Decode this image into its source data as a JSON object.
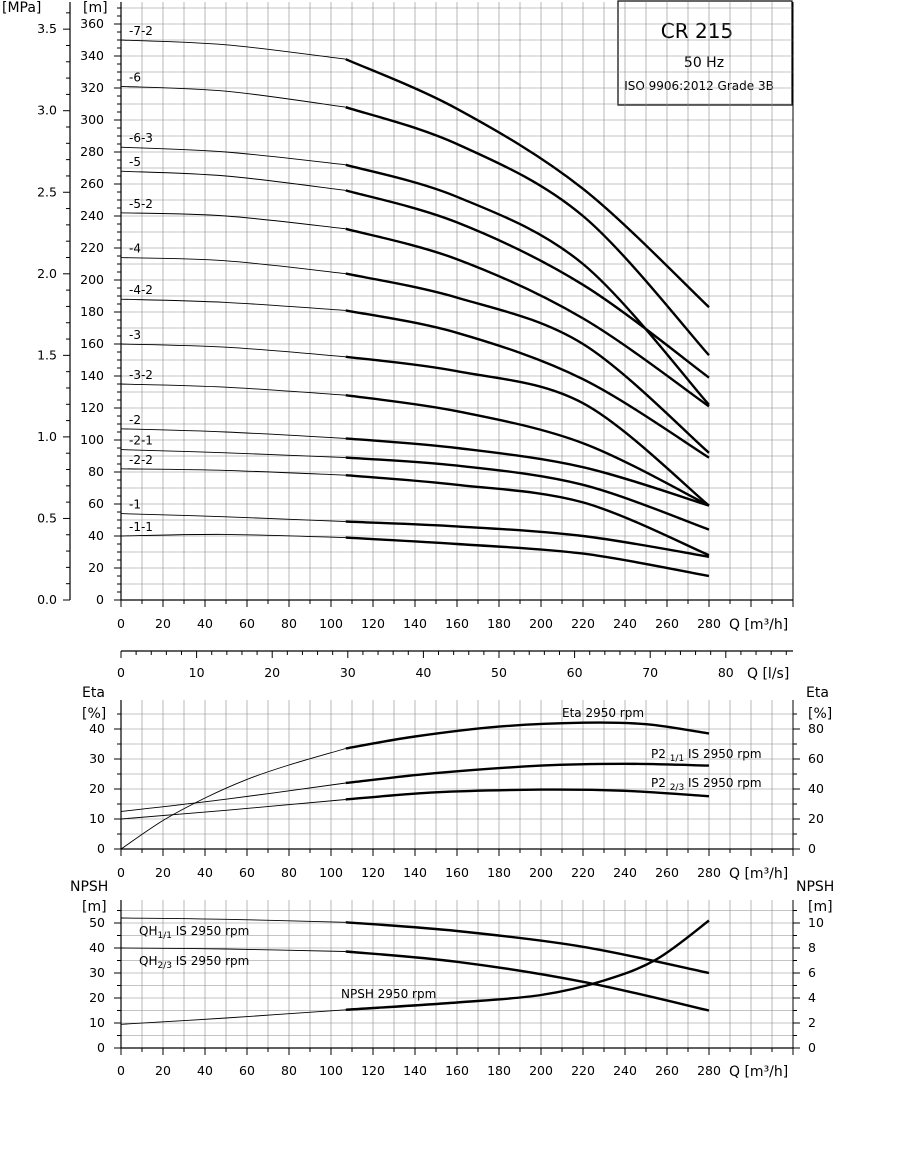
{
  "title": {
    "model": "CR 215",
    "frequency": "50 Hz",
    "standard": "ISO 9906:2012 Grade 3B"
  },
  "chart_data": [
    {
      "type": "line",
      "name": "head",
      "xlabel": "Q [m³/h]",
      "x_ticks": [
        0,
        20,
        40,
        60,
        80,
        100,
        120,
        140,
        160,
        180,
        200,
        220,
        240,
        260,
        280
      ],
      "xlim": [
        0,
        320
      ],
      "ylabel_left": "[m]",
      "y_ticks": [
        0,
        20,
        40,
        60,
        80,
        100,
        120,
        140,
        160,
        180,
        200,
        220,
        240,
        260,
        280,
        300,
        320,
        340,
        360
      ],
      "ylim": [
        0,
        370
      ],
      "ylabel_pressure": "[MPa]",
      "pressure_ticks": [
        "0.0",
        "0.5",
        "1.0",
        "1.5",
        "2.0",
        "2.5",
        "3.0",
        "3.5"
      ],
      "secondary_axis": {
        "label": "Q [l/s]",
        "ticks": [
          0,
          10,
          20,
          30,
          40,
          50,
          60,
          70,
          80
        ]
      },
      "grid": true,
      "duty_start_q": 107,
      "series": [
        {
          "name": "-7-2",
          "x": [
            0,
            50,
            107,
            160,
            220,
            280
          ],
          "y": [
            350,
            347,
            338,
            307,
            257,
            183
          ]
        },
        {
          "name": "-6",
          "x": [
            0,
            50,
            107,
            160,
            220,
            280
          ],
          "y": [
            321,
            318,
            308,
            285,
            240,
            153
          ]
        },
        {
          "name": "-6-3",
          "x": [
            0,
            50,
            107,
            160,
            220,
            280
          ],
          "y": [
            283,
            280,
            272,
            252,
            210,
            122
          ]
        },
        {
          "name": "-5",
          "x": [
            0,
            50,
            107,
            160,
            220,
            280
          ],
          "y": [
            268,
            265,
            256,
            236,
            197,
            139
          ]
        },
        {
          "name": "-5-2",
          "x": [
            0,
            50,
            107,
            160,
            220,
            280
          ],
          "y": [
            242,
            240,
            232,
            213,
            176,
            121
          ]
        },
        {
          "name": "-4",
          "x": [
            0,
            50,
            107,
            160,
            220,
            280
          ],
          "y": [
            214,
            212,
            204,
            189,
            160,
            92
          ]
        },
        {
          "name": "-4-2",
          "x": [
            0,
            50,
            107,
            160,
            220,
            280
          ],
          "y": [
            188,
            186,
            181,
            167,
            138,
            89
          ]
        },
        {
          "name": "-3",
          "x": [
            0,
            50,
            107,
            160,
            220,
            280
          ],
          "y": [
            160,
            158,
            152,
            143,
            123,
            59
          ]
        },
        {
          "name": "-3-2",
          "x": [
            0,
            50,
            107,
            160,
            220,
            280
          ],
          "y": [
            135,
            133,
            128,
            118,
            98,
            59
          ]
        },
        {
          "name": "-2",
          "x": [
            0,
            50,
            107,
            160,
            220,
            280
          ],
          "y": [
            107,
            105,
            101,
            95,
            83,
            59
          ]
        },
        {
          "name": "-2-1",
          "x": [
            0,
            50,
            107,
            160,
            220,
            280
          ],
          "y": [
            94,
            92,
            89,
            84,
            72,
            44
          ]
        },
        {
          "name": "-2-2",
          "x": [
            0,
            50,
            107,
            160,
            220,
            280
          ],
          "y": [
            82,
            81,
            78,
            72,
            61,
            28
          ]
        },
        {
          "name": "-1",
          "x": [
            0,
            50,
            107,
            160,
            220,
            280
          ],
          "y": [
            54,
            52,
            49,
            46,
            40,
            27
          ]
        },
        {
          "name": "-1-1",
          "x": [
            0,
            50,
            107,
            160,
            220,
            280
          ],
          "y": [
            40,
            41,
            39,
            35,
            29,
            15
          ]
        }
      ]
    },
    {
      "type": "line",
      "name": "efficiency_power",
      "xlabel": "Q [m³/h]",
      "x_ticks": [
        0,
        20,
        40,
        60,
        80,
        100,
        120,
        140,
        160,
        180,
        200,
        220,
        240,
        260,
        280
      ],
      "xlim": [
        0,
        320
      ],
      "ylabel_left": "Eta",
      "unit_left": "[%]",
      "y_ticks": [
        0,
        10,
        20,
        30,
        40
      ],
      "ylim": [
        0,
        47
      ],
      "ylabel_right": "Eta",
      "unit_right": "[%]",
      "y2_ticks": [
        0,
        20,
        40,
        60,
        80
      ],
      "grid": true,
      "series": [
        {
          "name": "Eta 2950 rpm",
          "x": [
            0,
            20,
            40,
            60,
            80,
            107,
            140,
            180,
            220,
            250,
            280
          ],
          "y": [
            0,
            9.5,
            17,
            23.2,
            28,
            33.5,
            37.5,
            40.8,
            42.1,
            41.6,
            38.5
          ]
        },
        {
          "name": "P2 1/1 IS 2950 rpm",
          "x": [
            0,
            50,
            107,
            150,
            200,
            240,
            280
          ],
          "y": [
            12.5,
            16.6,
            22,
            25.3,
            27.8,
            28.4,
            27.8
          ]
        },
        {
          "name": "P2 2/3 IS 2950 rpm",
          "x": [
            0,
            50,
            107,
            150,
            200,
            240,
            280
          ],
          "y": [
            10,
            12.9,
            16.5,
            18.9,
            19.8,
            19.4,
            17.6
          ]
        }
      ]
    },
    {
      "type": "line",
      "name": "npsh",
      "xlabel": "Q [m³/h]",
      "x_ticks": [
        0,
        20,
        40,
        60,
        80,
        100,
        120,
        140,
        160,
        180,
        200,
        220,
        240,
        260,
        280
      ],
      "xlim": [
        0,
        320
      ],
      "ylabel_left": "NPSH",
      "unit_left": "[m]",
      "y_ticks": [
        0,
        10,
        20,
        30,
        40,
        50
      ],
      "ylim": [
        0,
        55
      ],
      "ylabel_right": "NPSH",
      "unit_right": "[m]",
      "y2_ticks": [
        0,
        2,
        4,
        6,
        8,
        10
      ],
      "grid": true,
      "series": [
        {
          "name": "QH 1/1 IS 2950 rpm",
          "x": [
            0,
            50,
            107,
            160,
            220,
            280
          ],
          "y": [
            52,
            51.5,
            50.3,
            46.8,
            40.5,
            30
          ]
        },
        {
          "name": "QH 2/3 IS 2950 rpm",
          "x": [
            0,
            50,
            107,
            160,
            220,
            280
          ],
          "y": [
            40,
            39.6,
            38.6,
            34.5,
            26.5,
            15
          ]
        },
        {
          "name": "NPSH 2950 rpm",
          "x": [
            0,
            50,
            107,
            160,
            200,
            230,
            255,
            280
          ],
          "y": [
            9.5,
            12,
            15.3,
            18.2,
            21.2,
            27,
            35.5,
            51
          ]
        }
      ]
    }
  ],
  "labels": {
    "qh_top": "QH",
    "qh_top_sub": "1/1",
    "qh_top_rest": " IS 2950 rpm",
    "qh_bot": "QH",
    "qh_bot_sub": "2/3",
    "qh_bot_rest": " IS 2950 rpm",
    "npsh_curve": "NPSH 2950 rpm",
    "eta_curve": "Eta 2950 rpm",
    "p2_top_a": "P2 ",
    "p2_top_sub": "1/1",
    "p2_top_rest": " IS 2950 rpm",
    "p2_bot_a": "P2 ",
    "p2_bot_sub": "2/3",
    "p2_bot_rest": " IS 2950 rpm"
  }
}
